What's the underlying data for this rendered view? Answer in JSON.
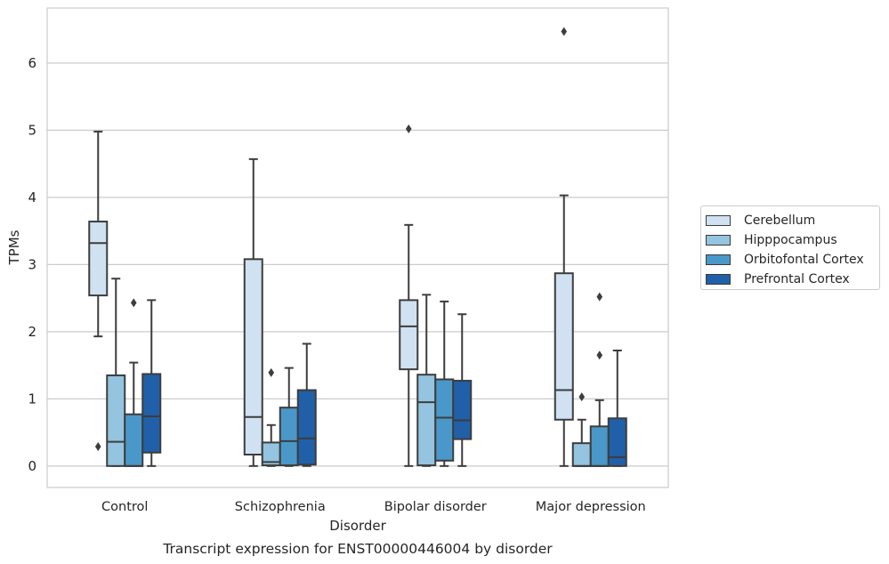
{
  "chart_data": {
    "type": "box",
    "title": "Transcript expression for ENST00000446004 by disorder",
    "xlabel": "Disorder",
    "ylabel": "TPMs",
    "ylim": [
      -0.32,
      6.82
    ],
    "yticks": [
      0,
      1,
      2,
      3,
      4,
      5,
      6
    ],
    "grid": true,
    "legend_position": "right",
    "categories": [
      "Control",
      "Schizophrenia",
      "Bipolar disorder",
      "Major depression"
    ],
    "series": [
      {
        "name": "Cerebellum",
        "color": "#d0e1f2",
        "boxes": [
          {
            "whislo": 1.93,
            "q1": 2.54,
            "med": 3.32,
            "q3": 3.64,
            "whishi": 4.98,
            "fliers": [
              0.29
            ]
          },
          {
            "whislo": 0.0,
            "q1": 0.17,
            "med": 0.73,
            "q3": 3.08,
            "whishi": 4.57,
            "fliers": []
          },
          {
            "whislo": 0.0,
            "q1": 1.44,
            "med": 2.08,
            "q3": 2.47,
            "whishi": 3.59,
            "fliers": [
              5.02
            ]
          },
          {
            "whislo": 0.0,
            "q1": 0.69,
            "med": 1.13,
            "q3": 2.87,
            "whishi": 4.03,
            "fliers": [
              6.47
            ]
          }
        ]
      },
      {
        "name": "Hipppocampus",
        "color": "#94c4df",
        "boxes": [
          {
            "whislo": 0.0,
            "q1": 0.0,
            "med": 0.36,
            "q3": 1.35,
            "whishi": 2.79,
            "fliers": []
          },
          {
            "whislo": 0.0,
            "q1": 0.01,
            "med": 0.06,
            "q3": 0.35,
            "whishi": 0.61,
            "fliers": [
              1.39
            ]
          },
          {
            "whislo": 0.0,
            "q1": 0.01,
            "med": 0.95,
            "q3": 1.36,
            "whishi": 2.55,
            "fliers": []
          },
          {
            "whislo": 0.0,
            "q1": 0.0,
            "med": 0.0,
            "q3": 0.34,
            "whishi": 0.69,
            "fliers": [
              1.03
            ]
          }
        ]
      },
      {
        "name": "Orbitofontal Cortex",
        "color": "#4a98c9",
        "boxes": [
          {
            "whislo": 0.0,
            "q1": 0.0,
            "med": 0.0,
            "q3": 0.77,
            "whishi": 1.54,
            "fliers": [
              2.43
            ]
          },
          {
            "whislo": 0.0,
            "q1": 0.01,
            "med": 0.37,
            "q3": 0.87,
            "whishi": 1.46,
            "fliers": []
          },
          {
            "whislo": 0.0,
            "q1": 0.08,
            "med": 0.72,
            "q3": 1.29,
            "whishi": 2.45,
            "fliers": []
          },
          {
            "whislo": 0.0,
            "q1": 0.0,
            "med": 0.0,
            "q3": 0.59,
            "whishi": 0.98,
            "fliers": [
              1.65,
              2.52
            ]
          }
        ]
      },
      {
        "name": "Prefrontal Cortex",
        "color": "#2060a8",
        "boxes": [
          {
            "whislo": 0.0,
            "q1": 0.2,
            "med": 0.74,
            "q3": 1.37,
            "whishi": 2.47,
            "fliers": []
          },
          {
            "whislo": 0.0,
            "q1": 0.02,
            "med": 0.41,
            "q3": 1.13,
            "whishi": 1.82,
            "fliers": []
          },
          {
            "whislo": 0.0,
            "q1": 0.4,
            "med": 0.68,
            "q3": 1.27,
            "whishi": 2.26,
            "fliers": []
          },
          {
            "whislo": 0.0,
            "q1": 0.0,
            "med": 0.13,
            "q3": 0.71,
            "whishi": 1.72,
            "fliers": []
          }
        ]
      }
    ]
  }
}
